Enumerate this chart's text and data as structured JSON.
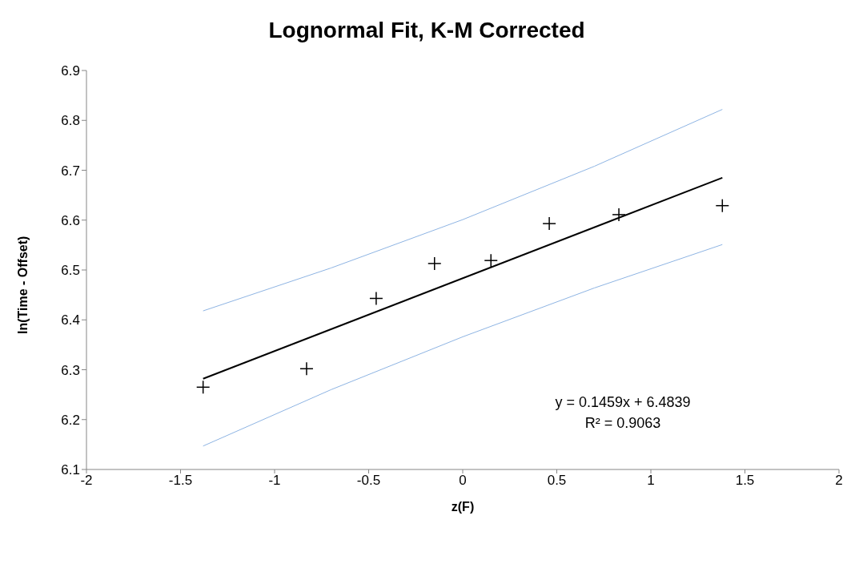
{
  "chart_data": {
    "type": "scatter",
    "title": "Lognormal Fit, K-M Corrected",
    "xlabel": "z(F)",
    "ylabel": "ln(Time - Offset)",
    "xlim": [
      -2,
      2
    ],
    "xticks": [
      -2,
      -1.5,
      -1,
      -0.5,
      0,
      0.5,
      1,
      1.5,
      2
    ],
    "ylim": [
      6.1,
      6.9
    ],
    "yticks": [
      6.1,
      6.2,
      6.3,
      6.4,
      6.5,
      6.6,
      6.7,
      6.8,
      6.9
    ],
    "grid": false,
    "legend": false,
    "annotations": [
      "y = 0.1459x + 6.4839",
      "R² = 0.9063"
    ],
    "series": [
      {
        "marker": "cross",
        "color": "#000000",
        "x": [
          -1.38,
          -0.83,
          -0.46,
          -0.15,
          0.15,
          0.46,
          0.83,
          1.38
        ],
        "values": [
          6.265,
          6.302,
          6.443,
          6.513,
          6.519,
          6.593,
          6.611,
          6.629
        ]
      },
      {
        "type": "line",
        "color": "#000000",
        "x": [
          -1.38,
          1.38
        ],
        "values": [
          6.282,
          6.685
        ]
      },
      {
        "type": "line",
        "color": "#8eb4e3",
        "x": [
          -1.38,
          -0.7,
          0,
          0.7,
          1.38
        ],
        "values": [
          6.418,
          6.504,
          6.601,
          6.708,
          6.822
        ]
      },
      {
        "type": "line",
        "color": "#8eb4e3",
        "x": [
          -1.38,
          -0.7,
          0,
          0.7,
          1.38
        ],
        "values": [
          6.147,
          6.26,
          6.366,
          6.464,
          6.551
        ]
      }
    ]
  }
}
